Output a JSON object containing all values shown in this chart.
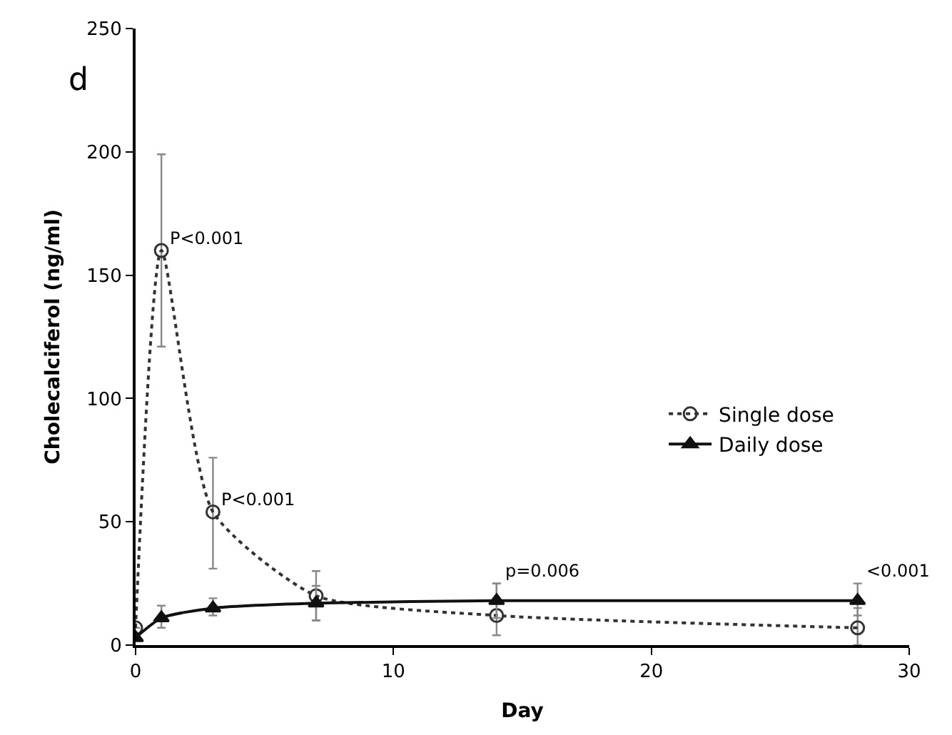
{
  "chart_data": {
    "type": "line",
    "xlabel": "Day",
    "ylabel": "Cholecalciferol (ng/ml)",
    "x": [
      0,
      1,
      3,
      7,
      14,
      28
    ],
    "series": [
      {
        "name": "Single dose",
        "color": "#333333",
        "values": [
          7,
          160,
          54,
          20,
          12,
          7
        ],
        "errors": [
          null,
          [
            121,
            199
          ],
          [
            31,
            76
          ],
          [
            10,
            30
          ],
          [
            4,
            25
          ],
          [
            0,
            15
          ]
        ],
        "marker": "circle",
        "line_style": "dotted"
      },
      {
        "name": "Daily dose",
        "color": "#111111",
        "values": [
          3,
          11,
          15,
          17,
          18,
          18
        ],
        "errors": [
          null,
          [
            7,
            16
          ],
          [
            12,
            19
          ],
          [
            10,
            24
          ],
          [
            11,
            25
          ],
          [
            12,
            25
          ]
        ],
        "marker": "triangle",
        "line_style": "solid"
      }
    ],
    "xlim": [
      0,
      30
    ],
    "xticks": [
      0,
      10,
      20,
      30
    ],
    "ylim": [
      0,
      250
    ],
    "yticks": [
      0,
      50,
      100,
      150,
      200,
      250
    ],
    "legend": "right",
    "annotations": [
      "d",
      {
        "text": "P<0.001",
        "x": 1,
        "y": 160
      },
      {
        "text": "P<0.001",
        "x": 3,
        "y": 54
      },
      {
        "text": "p=0.006",
        "x": 14,
        "y": 25
      },
      {
        "text": "<0.001",
        "x": 28,
        "y": 25
      }
    ]
  }
}
